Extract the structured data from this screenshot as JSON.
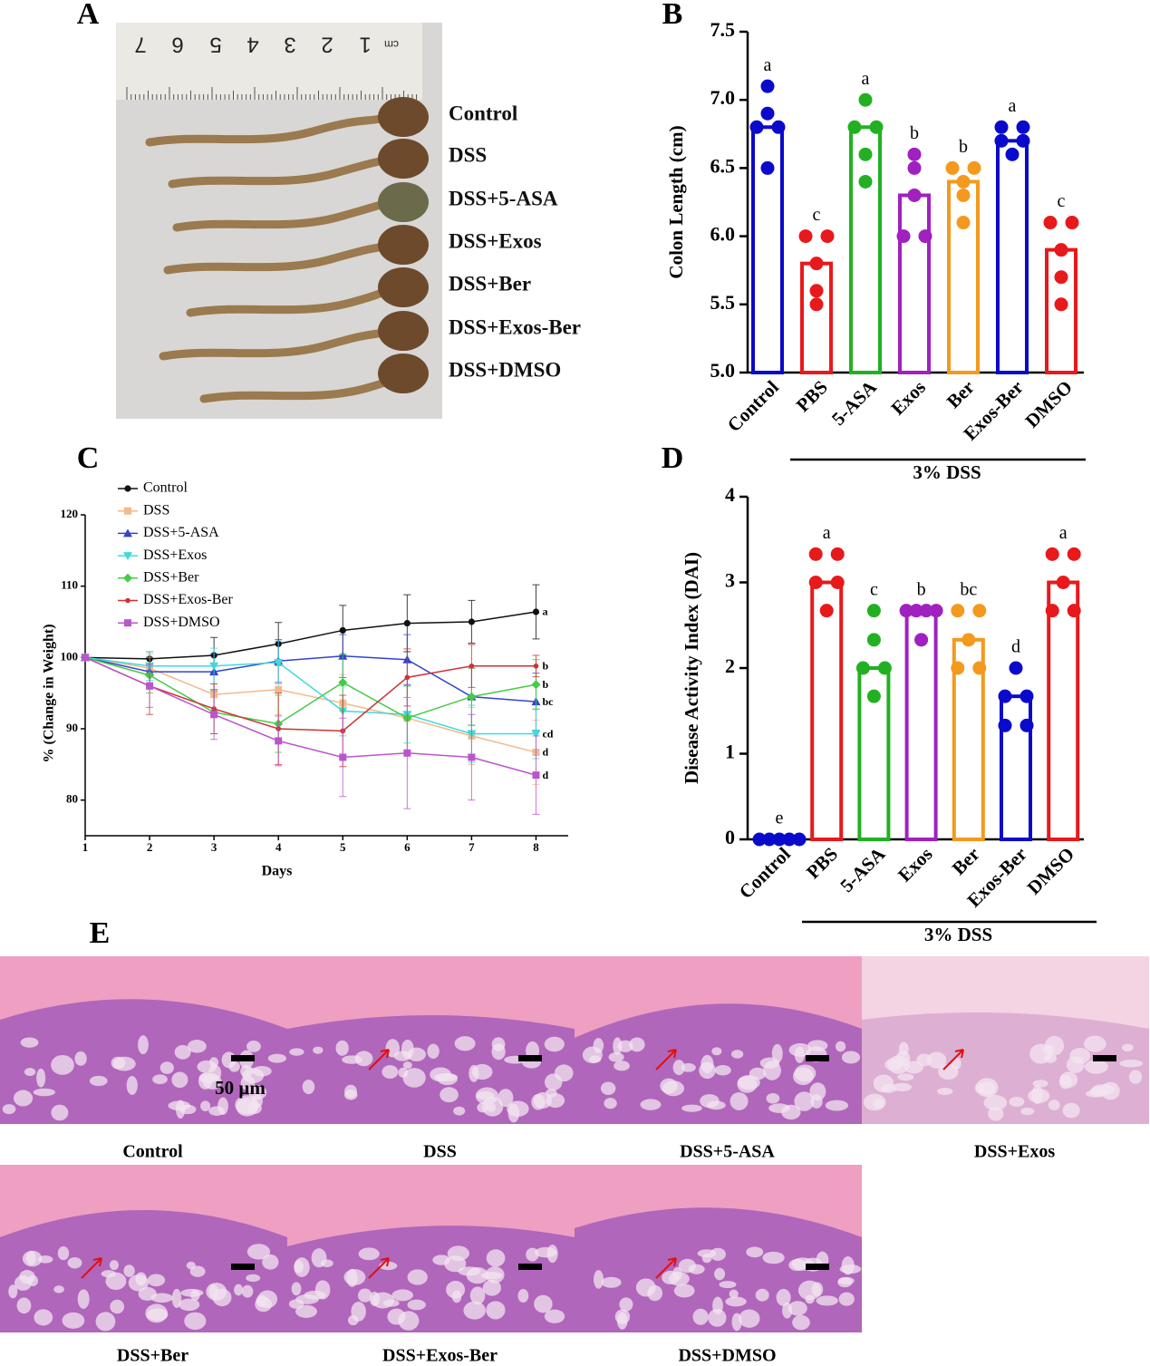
{
  "panel_letters": [
    "A",
    "B",
    "C",
    "D",
    "E"
  ],
  "panel_a": {
    "ruler_labels": [
      "7",
      "6",
      "5",
      "4",
      "3",
      "2",
      "1",
      "cm"
    ],
    "labels": [
      "Control",
      "DSS",
      "DSS+5-ASA",
      "DSS+Exos",
      "DSS+Ber",
      "DSS+Exos-Ber",
      "DSS+DMSO"
    ]
  },
  "chart_data": [
    {
      "type": "dotbar",
      "ylabel": "Colon Length (cm)",
      "categories": [
        "Control",
        "PBS",
        "5-ASA",
        "Exos",
        "Ber",
        "Exos-Ber",
        "DMSO"
      ],
      "values": [
        6.8,
        5.8,
        6.8,
        6.3,
        6.4,
        6.7,
        5.9
      ],
      "points": [
        [
          7.1,
          6.9,
          6.8,
          6.8,
          6.5
        ],
        [
          6.0,
          6.0,
          5.8,
          5.6,
          5.5
        ],
        [
          7.0,
          6.8,
          6.8,
          6.6,
          6.4
        ],
        [
          6.6,
          6.5,
          6.3,
          6.0,
          6.0
        ],
        [
          6.5,
          6.5,
          6.4,
          6.3,
          6.1
        ],
        [
          6.8,
          6.8,
          6.7,
          6.7,
          6.6
        ],
        [
          6.1,
          6.1,
          5.9,
          5.7,
          5.5
        ]
      ],
      "colors": [
        "#0a0acc",
        "#e8191b",
        "#22b022",
        "#a020c0",
        "#f39a1e",
        "#0a0acc",
        "#e8191b"
      ],
      "letters": [
        "a",
        "c",
        "a",
        "b",
        "b",
        "a",
        "c"
      ],
      "group_label": "3% DSS",
      "ylim": [
        5,
        7.5
      ],
      "yticks": [
        {
          "value": 5,
          "label": "5.0"
        },
        {
          "value": 5.5,
          "label": "5.5"
        },
        {
          "value": 6,
          "label": "6.0"
        },
        {
          "value": 6.5,
          "label": "6.5"
        },
        {
          "value": 7,
          "label": "7.0"
        },
        {
          "value": 7.5,
          "label": "7.5"
        }
      ]
    },
    {
      "type": "line",
      "ylabel": "% (Change in Weight)",
      "xlabel": "Days",
      "x": [
        1,
        2,
        3,
        4,
        5,
        6,
        7,
        8
      ],
      "xlim": [
        1,
        8.5
      ],
      "xticks": [
        1,
        2,
        3,
        4,
        5,
        6,
        7,
        8
      ],
      "ylim": [
        75,
        120
      ],
      "yticks": [
        80,
        90,
        100,
        110,
        120
      ],
      "series": [
        {
          "name": "Control",
          "color": "#111111",
          "marker": "circle",
          "values": [
            100,
            99.8,
            100.3,
            101.9,
            103.8,
            104.8,
            105,
            106.4
          ],
          "errors": [
            0,
            1,
            2.5,
            3,
            3.5,
            4,
            3,
            3.8
          ],
          "end_label": "a"
        },
        {
          "name": "DSS",
          "color": "#f2b98c",
          "marker": "square",
          "values": [
            100,
            98.5,
            94.8,
            95.5,
            93.6,
            91.5,
            89,
            86.7
          ],
          "errors": [
            0,
            2,
            3,
            3.5,
            4,
            4.5,
            4,
            4.5
          ],
          "end_label": "d"
        },
        {
          "name": "DSS+5-ASA",
          "color": "#3344cc",
          "marker": "triangle",
          "values": [
            100,
            98,
            98,
            99.5,
            100.2,
            99.7,
            94.5,
            93.8
          ],
          "errors": [
            0,
            2,
            2.5,
            3,
            3,
            3.5,
            4,
            4
          ],
          "end_label": "bc"
        },
        {
          "name": "DSS+Exos",
          "color": "#3fdada",
          "marker": "triangle-down",
          "values": [
            100,
            98.8,
            98.8,
            99.3,
            92.5,
            92,
            89.3,
            89.3
          ],
          "errors": [
            0,
            2,
            2.5,
            3,
            3.5,
            4,
            4,
            3.5
          ],
          "end_label": "cd"
        },
        {
          "name": "DSS+Ber",
          "color": "#44cc44",
          "marker": "diamond",
          "values": [
            100,
            97.5,
            92.3,
            90.7,
            96.5,
            91.5,
            94.5,
            96.2
          ],
          "errors": [
            0,
            2.5,
            3,
            4,
            4,
            4.5,
            4,
            3.5
          ],
          "end_label": "b"
        },
        {
          "name": "DSS+Exos-Ber",
          "color": "#cc3333",
          "marker": "dot",
          "values": [
            100,
            96,
            92.8,
            90,
            89.7,
            97.2,
            98.8,
            98.8
          ],
          "errors": [
            0,
            4,
            3.5,
            5,
            5,
            4,
            3,
            1.5
          ],
          "end_label": "b"
        },
        {
          "name": "DSS+DMSO",
          "color": "#bb55cc",
          "marker": "square",
          "values": [
            100,
            96,
            92,
            88.3,
            86,
            86.6,
            86,
            83.5
          ],
          "errors": [
            0,
            3,
            3.5,
            3.5,
            5.5,
            7.8,
            6,
            5.5
          ],
          "end_label": "d"
        }
      ]
    },
    {
      "type": "dotbar",
      "ylabel": "Disease Activity Index (DAI)",
      "categories": [
        "Control",
        "PBS",
        "5-ASA",
        "Exos",
        "Ber",
        "Exos-Ber",
        "DMSO"
      ],
      "values": [
        0,
        3,
        2,
        2.67,
        2.33,
        1.67,
        3
      ],
      "points": [
        [
          0,
          0,
          0,
          0,
          0
        ],
        [
          3.33,
          3.33,
          3,
          3,
          2.67
        ],
        [
          2.67,
          2.33,
          2,
          2,
          1.67
        ],
        [
          2.67,
          2.67,
          2.67,
          2.67,
          2.33
        ],
        [
          2.67,
          2.67,
          2.33,
          2,
          2
        ],
        [
          2,
          1.67,
          1.67,
          1.33,
          1.33
        ],
        [
          3.33,
          3.33,
          3,
          2.67,
          2.67
        ]
      ],
      "colors": [
        "#0a0acc",
        "#e8191b",
        "#22b022",
        "#a020c0",
        "#f39a1e",
        "#0a0acc",
        "#e8191b"
      ],
      "letters": [
        "e",
        "a",
        "c",
        "b",
        "bc",
        "d",
        "a"
      ],
      "group_label": "3% DSS",
      "ylim": [
        0,
        4
      ],
      "yticks": [
        0,
        1,
        2,
        3,
        4
      ]
    }
  ],
  "panel_e": {
    "scale_label": "50 μm",
    "labels": [
      "Control",
      "DSS",
      "DSS+5-ASA",
      "DSS+Exos",
      "DSS+Ber",
      "DSS+Exos-Ber",
      "DSS+DMSO"
    ]
  }
}
